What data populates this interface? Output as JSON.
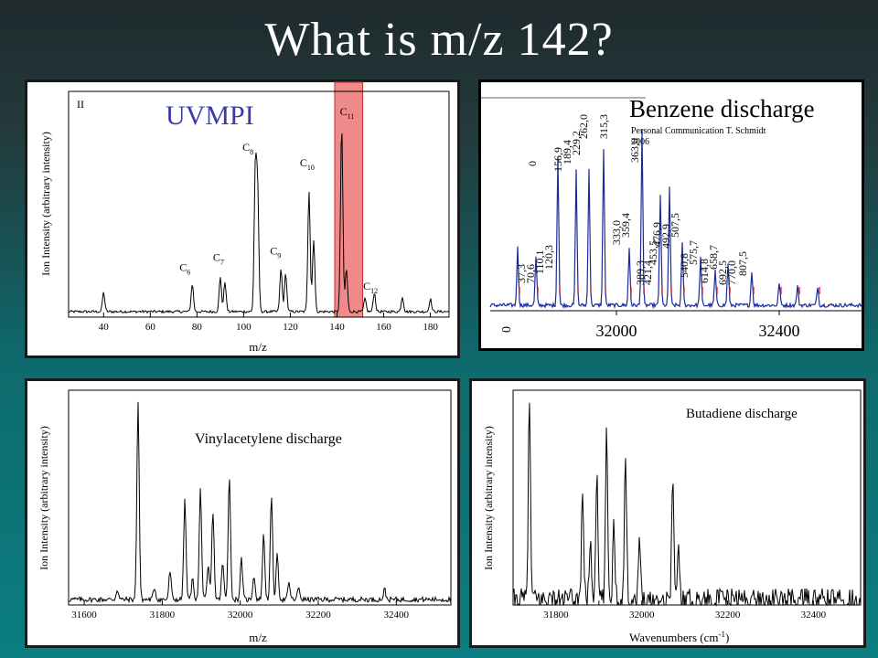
{
  "slide_title": "What is m/z 142?",
  "chart_data": [
    {
      "type": "line",
      "panel_label": "II",
      "title": "UVMPI",
      "xlabel": "m/z",
      "ylabel": "Ion Intensity (arbitrary intensity)",
      "xlim": [
        25,
        188
      ],
      "x_ticks": [
        40,
        60,
        80,
        100,
        120,
        140,
        160,
        180
      ],
      "highlight_band": [
        139,
        151
      ],
      "highlight_color": "#f08a8a",
      "peaks": [
        {
          "x": 40,
          "y": 0.09
        },
        {
          "x": 78,
          "y": 0.13,
          "label": "C",
          "sub": "6"
        },
        {
          "x": 90,
          "y": 0.16,
          "label": "C",
          "sub": "7"
        },
        {
          "x": 92,
          "y": 0.14
        },
        {
          "x": 105,
          "y": 0.66,
          "label": "C",
          "sub": "8"
        },
        {
          "x": 106,
          "y": 0.55
        },
        {
          "x": 116,
          "y": 0.2,
          "label": "C",
          "sub": "9"
        },
        {
          "x": 118,
          "y": 0.18
        },
        {
          "x": 128,
          "y": 0.57,
          "label": "C",
          "sub": "10"
        },
        {
          "x": 130,
          "y": 0.34
        },
        {
          "x": 142,
          "y": 0.88,
          "label": "C",
          "sub": "11"
        },
        {
          "x": 144,
          "y": 0.2
        },
        {
          "x": 152,
          "y": 0.06,
          "label": "C",
          "sub": "12"
        },
        {
          "x": 156,
          "y": 0.09
        },
        {
          "x": 168,
          "y": 0.07
        },
        {
          "x": 180,
          "y": 0.06
        }
      ]
    },
    {
      "type": "line",
      "title": "Benzene discharge",
      "credit_line1": "Personal Communication T. Schmidt",
      "credit_line2": "2006",
      "x_ticks": [
        32000,
        32400
      ],
      "zero_label": "0",
      "line_color": "#1a2a9a",
      "peak_labels": [
        "0",
        "37,3",
        "70,6",
        "110,1",
        "120,3",
        "156,9",
        "189,4",
        "229,2",
        "262,0",
        "315,3",
        "333,0",
        "359,4",
        "363,0",
        "389,3",
        "421,4",
        "453,5",
        "476,9",
        "492,9",
        "507,5",
        "540,8",
        "575,7",
        "614,8",
        "658,7",
        "692,5",
        "770,0",
        "807,5"
      ]
    },
    {
      "type": "line",
      "title": "Vinylacetylene discharge",
      "xlabel": "m/z",
      "ylabel": "Ion Intensity (arbitrary intensity)",
      "xlim": [
        31560,
        32540
      ],
      "x_ticks": [
        31600,
        31800,
        32000,
        32200,
        32400
      ],
      "peaks": [
        {
          "x": 31685,
          "y": 0.05
        },
        {
          "x": 31738,
          "y": 0.98
        },
        {
          "x": 31780,
          "y": 0.06
        },
        {
          "x": 31820,
          "y": 0.14
        },
        {
          "x": 31858,
          "y": 0.49
        },
        {
          "x": 31878,
          "y": 0.1
        },
        {
          "x": 31898,
          "y": 0.55
        },
        {
          "x": 31918,
          "y": 0.16
        },
        {
          "x": 31930,
          "y": 0.44
        },
        {
          "x": 31955,
          "y": 0.18
        },
        {
          "x": 31972,
          "y": 0.62
        },
        {
          "x": 32003,
          "y": 0.2
        },
        {
          "x": 32035,
          "y": 0.12
        },
        {
          "x": 32060,
          "y": 0.32
        },
        {
          "x": 32080,
          "y": 0.51
        },
        {
          "x": 32095,
          "y": 0.22
        },
        {
          "x": 32125,
          "y": 0.08
        },
        {
          "x": 32150,
          "y": 0.06
        },
        {
          "x": 32370,
          "y": 0.05
        }
      ]
    },
    {
      "type": "line",
      "title": "Butadiene discharge",
      "xlabel": "Wavenumbers (cm",
      "xlabel_sup": "-1",
      "xlabel_tail": ")",
      "ylabel": "Ion Intensity (arbitrary intensity)",
      "xlim": [
        31700,
        32510
      ],
      "x_ticks": [
        31800,
        31900,
        32000,
        32100,
        32200,
        32300,
        32400
      ],
      "x_tick_labels": [
        "31800",
        "",
        "32000",
        "",
        "32200",
        "",
        "32400"
      ],
      "peaks": [
        {
          "x": 31738,
          "y": 0.98
        },
        {
          "x": 31862,
          "y": 0.55
        },
        {
          "x": 31880,
          "y": 0.3
        },
        {
          "x": 31895,
          "y": 0.62
        },
        {
          "x": 31918,
          "y": 0.82
        },
        {
          "x": 31935,
          "y": 0.38
        },
        {
          "x": 31962,
          "y": 0.72
        },
        {
          "x": 31995,
          "y": 0.28
        },
        {
          "x": 32072,
          "y": 0.6
        },
        {
          "x": 32085,
          "y": 0.25
        }
      ]
    }
  ]
}
